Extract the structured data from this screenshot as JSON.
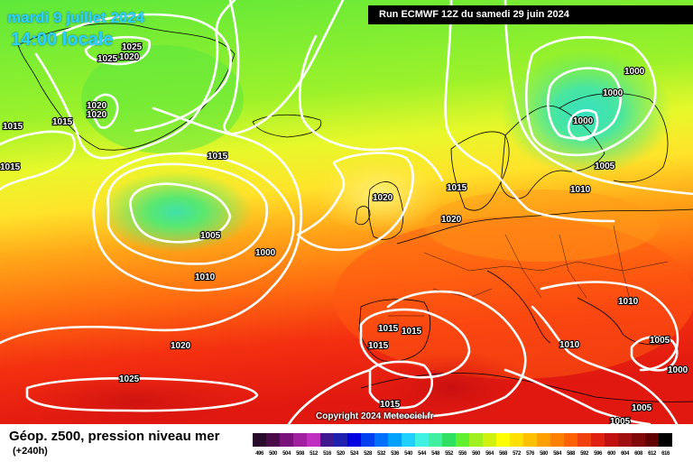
{
  "header": {
    "date": "mardi 9 juillet 2024",
    "time": "14:00 locale",
    "run": "Run ECMWF 12Z du samedi 29 juin 2024"
  },
  "copyright": "Copyright 2024 Meteociel.fr",
  "footer": {
    "title": "Géop. z500, pression niveau mer",
    "subtitle": "(+240h)"
  },
  "isobar_labels": [
    {
      "text": "1025"
    },
    {
      "text": "1020"
    },
    {
      "text": "1025"
    },
    {
      "text": "1020"
    },
    {
      "text": "1020"
    },
    {
      "text": "1015"
    },
    {
      "text": "1015"
    },
    {
      "text": "1015"
    },
    {
      "text": "1015"
    },
    {
      "text": "1005"
    },
    {
      "text": "1000"
    },
    {
      "text": "1010"
    },
    {
      "text": "1020"
    },
    {
      "text": "1025"
    },
    {
      "text": "1020"
    },
    {
      "text": "1015"
    },
    {
      "text": "1020"
    },
    {
      "text": "1000"
    },
    {
      "text": "1000"
    },
    {
      "text": "1000"
    },
    {
      "text": "1005"
    },
    {
      "text": "1010"
    },
    {
      "text": "1015"
    },
    {
      "text": "1015"
    },
    {
      "text": "1015"
    },
    {
      "text": "1015"
    },
    {
      "text": "1010"
    },
    {
      "text": "1010"
    },
    {
      "text": "1005"
    },
    {
      "text": "1000"
    },
    {
      "text": "1005"
    },
    {
      "text": "1005"
    }
  ],
  "scale": {
    "colors": [
      "#2a0a2a",
      "#4a0a4a",
      "#7a107a",
      "#a020a0",
      "#c030c0",
      "#401890",
      "#2020b0",
      "#0000e0",
      "#0040f0",
      "#0070ff",
      "#00a0ff",
      "#20d0ff",
      "#40f0e0",
      "#40f0a0",
      "#30e060",
      "#60f030",
      "#a0f020",
      "#d0f010",
      "#ffff00",
      "#ffe000",
      "#ffc000",
      "#ffa000",
      "#ff8000",
      "#ff6000",
      "#f04010",
      "#e02010",
      "#c01010",
      "#a01010",
      "#800808",
      "#600000",
      "#000000"
    ],
    "labels": [
      "496",
      "500",
      "504",
      "508",
      "512",
      "516",
      "520",
      "524",
      "528",
      "532",
      "536",
      "540",
      "544",
      "548",
      "552",
      "556",
      "560",
      "564",
      "568",
      "572",
      "576",
      "580",
      "584",
      "588",
      "592",
      "596",
      "600",
      "604",
      "608",
      "612",
      "616"
    ]
  }
}
